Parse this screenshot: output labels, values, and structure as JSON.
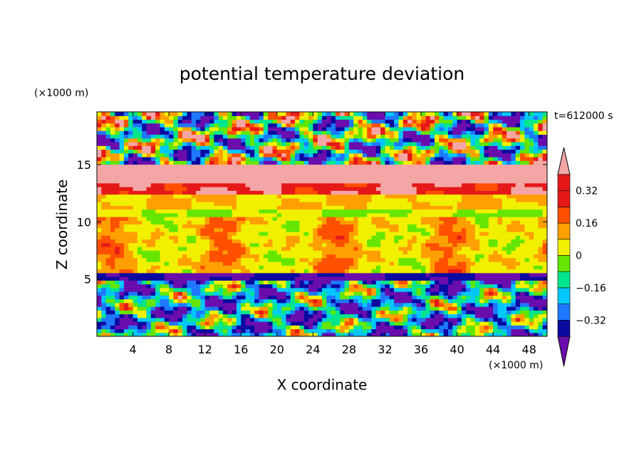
{
  "chart_data": {
    "type": "heatmap",
    "title": "potential temperature deviation",
    "xlabel": "X coordinate",
    "ylabel": "Z coordinate",
    "x_unit": "(×1000 m)",
    "y_unit": "(×1000 m)",
    "time_label": "t=612000 s",
    "xlim": [
      0,
      50
    ],
    "ylim": [
      0,
      19.6
    ],
    "x_ticks": [
      4,
      8,
      12,
      16,
      20,
      24,
      28,
      32,
      36,
      40,
      44,
      48
    ],
    "x_tick_labels": [
      "4",
      "8",
      "12",
      "16",
      "20",
      "24",
      "28",
      "32",
      "36",
      "40",
      "44",
      "48"
    ],
    "y_ticks": [
      5,
      10,
      15
    ],
    "y_tick_labels": [
      "5",
      "10",
      "15"
    ],
    "colorbar": {
      "levels": [
        -0.4,
        -0.32,
        -0.24,
        -0.16,
        -0.08,
        0,
        0.08,
        0.16,
        0.24,
        0.32,
        0.4
      ],
      "tick_values": [
        -0.32,
        -0.16,
        0,
        0.16,
        0.32
      ],
      "tick_labels": [
        "−0.32",
        "−0.16",
        "0",
        "0.16",
        "0.32"
      ],
      "colors": [
        "#6a0dad",
        "#0a0aa0",
        "#1e78ff",
        "#00c8ff",
        "#00e68c",
        "#64e600",
        "#f0f000",
        "#ffa000",
        "#ff5000",
        "#e61919",
        "#f4a6a6"
      ],
      "extend": "both"
    },
    "bands_description_values": [
      {
        "z_range": [
          0,
          5.0
        ],
        "dominant_value": -0.2
      },
      {
        "z_range": [
          5.0,
          5.5
        ],
        "dominant_value": -0.4
      },
      {
        "z_range": [
          5.5,
          10.5
        ],
        "dominant_value": 0.04
      },
      {
        "z_range": [
          10.5,
          11.0
        ],
        "dominant_value": 0.0
      },
      {
        "z_range": [
          11.0,
          12.5
        ],
        "dominant_value": 0.08
      },
      {
        "z_range": [
          12.5,
          13.5
        ],
        "dominant_value": 0.3
      },
      {
        "z_range": [
          13.5,
          15.0
        ],
        "dominant_value": 0.45
      },
      {
        "z_range": [
          15.0,
          19.6
        ],
        "dominant_value": -0.1
      }
    ]
  }
}
